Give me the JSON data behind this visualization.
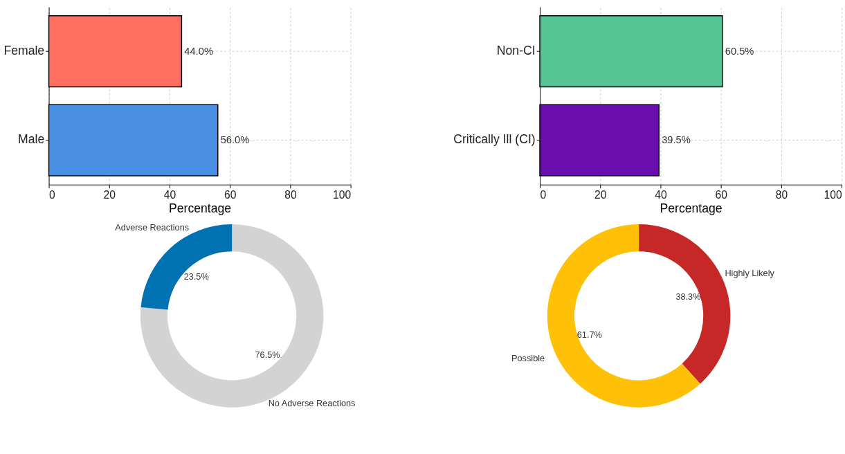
{
  "chart_data": [
    {
      "type": "bar",
      "orientation": "horizontal",
      "categories": [
        "Female",
        "Male"
      ],
      "values": [
        44.0,
        56.0
      ],
      "colors": [
        "#ff6f61",
        "#4a90e2"
      ],
      "value_labels": [
        "44.0%",
        "56.0%"
      ],
      "xlabel": "Percentage",
      "xlim": [
        0,
        100
      ],
      "xticks": [
        0,
        20,
        40,
        60,
        80,
        100
      ],
      "grid": true
    },
    {
      "type": "bar",
      "orientation": "horizontal",
      "categories": [
        "Non-CI",
        "Critically Ill (CI)"
      ],
      "values": [
        60.5,
        39.5
      ],
      "colors": [
        "#55c595",
        "#6a0dad"
      ],
      "value_labels": [
        "60.5%",
        "39.5%"
      ],
      "xlabel": "Percentage",
      "xlim": [
        0,
        100
      ],
      "xticks": [
        0,
        20,
        40,
        60,
        80,
        100
      ],
      "grid": true
    },
    {
      "type": "donut",
      "categories": [
        "No Adverse Reactions",
        "Adverse Reactions"
      ],
      "values": [
        76.5,
        23.5
      ],
      "colors": [
        "#d3d3d3",
        "#0072b2"
      ],
      "value_labels": [
        "76.5%",
        "23.5%"
      ]
    },
    {
      "type": "donut",
      "categories": [
        "Highly Likely",
        "Possible"
      ],
      "values": [
        38.3,
        61.7
      ],
      "colors": [
        "#c62828",
        "#ffc107"
      ],
      "value_labels": [
        "38.3%",
        "61.7%"
      ]
    }
  ]
}
